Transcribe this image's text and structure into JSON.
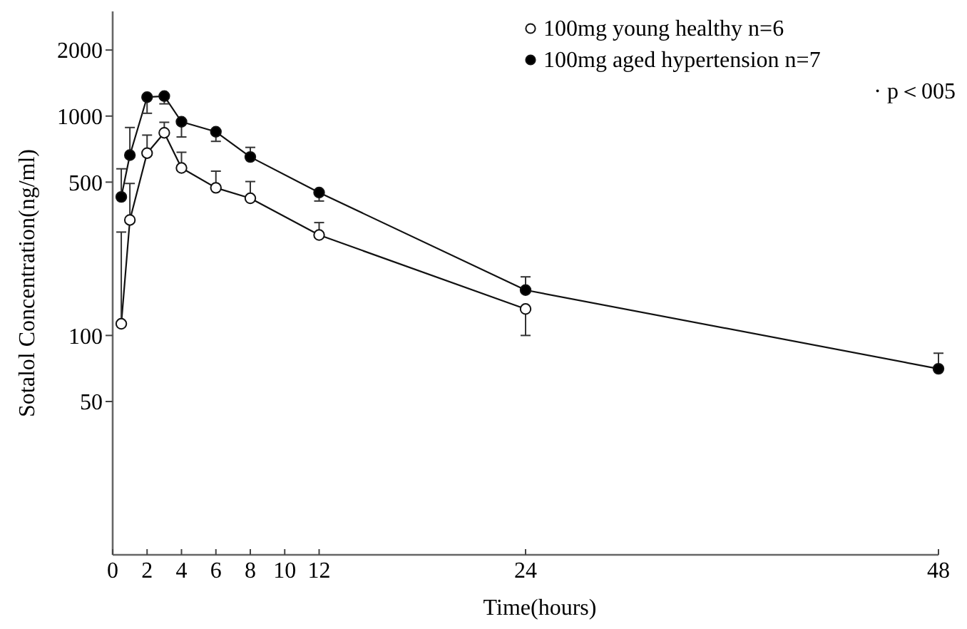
{
  "chart_data": {
    "type": "line",
    "xlabel": "Time(hours)",
    "ylabel": "Sotalol Concentration(ng/ml)",
    "x": [
      0.5,
      1,
      2,
      3,
      4,
      6,
      8,
      12,
      24,
      48
    ],
    "xlim": [
      0,
      48
    ],
    "xticks": [
      0,
      2,
      4,
      6,
      8,
      10,
      12,
      24,
      48
    ],
    "ylim": [
      10,
      3000
    ],
    "yticks": [
      50,
      100,
      500,
      1000,
      2000
    ],
    "log": true,
    "grid": false,
    "legend": "top right",
    "marker": "circle",
    "line_style": "solid",
    "series": [
      {
        "name": "100mg young healthy n=6",
        "color": "#ffffff",
        "x": [
          0.5,
          1,
          2,
          3,
          4,
          6,
          8,
          12,
          24
        ],
        "values": [
          113,
          336,
          678,
          839,
          580,
          471,
          422,
          287,
          132
        ],
        "errors": [
          [
            113,
            296
          ],
          [
            336,
            493
          ],
          [
            678,
            819
          ],
          [
            839,
            937
          ],
          [
            580,
            684
          ],
          [
            471,
            561
          ],
          [
            422,
            503
          ],
          [
            287,
            327
          ],
          [
            100,
            132
          ]
        ]
      },
      {
        "name": "100mg aged hypertension n=7",
        "color": "#000000",
        "values": [
          428,
          664,
          1220,
          1233,
          942,
          848,
          651,
          448,
          161,
          70.5
        ],
        "errors": [
          [
            428,
            575
          ],
          [
            664,
            887
          ],
          [
            1030,
            1220
          ],
          [
            1137,
            1233
          ],
          [
            803,
            942
          ],
          [
            767,
            848
          ],
          [
            651,
            720
          ],
          [
            410,
            448
          ],
          [
            161,
            185
          ],
          [
            70.5,
            83
          ]
        ]
      }
    ],
    "annotations": [
      "· p＜005"
    ]
  }
}
